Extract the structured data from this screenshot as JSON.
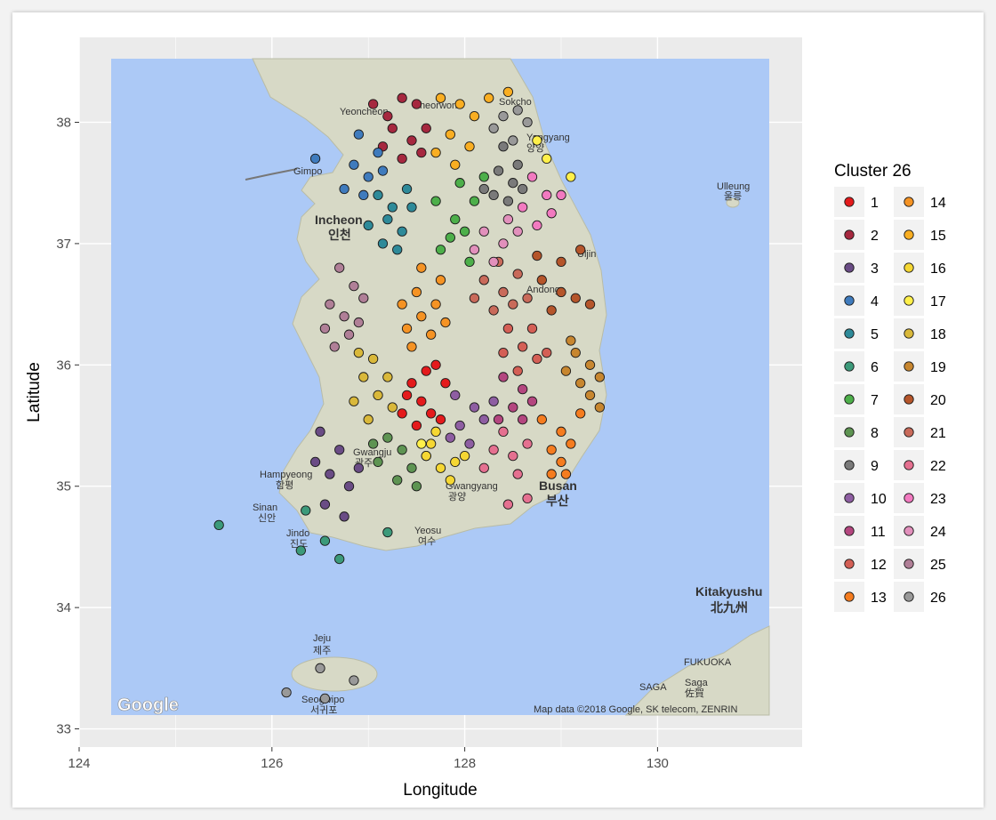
{
  "chart_data": {
    "type": "scatter",
    "xlabel": "Longitude",
    "ylabel": "Latitude",
    "xlim": [
      124,
      131.5
    ],
    "ylim": [
      32.85,
      38.7
    ],
    "xticks": [
      124,
      126,
      128,
      130
    ],
    "yticks": [
      33,
      34,
      35,
      36,
      37,
      38
    ],
    "grid": true,
    "legend": {
      "title": "Cluster 26",
      "placement": "right",
      "columns": 2
    },
    "attribution": "Map data ©2018 Google, SK telecom, ZENRIN",
    "map_labels": [
      "Yeoncheon",
      "Cheorwon",
      "Sokcho",
      "Yangyang",
      "양양",
      "Gimpo",
      "Ulleung",
      "울릉",
      "Incheon",
      "인천",
      "Uljin",
      "Andong",
      "Hampyeong",
      "함평",
      "Sinan",
      "신안",
      "Jindo",
      "진도",
      "Gwangju",
      "광주",
      "Gwangyang",
      "광양",
      "Yeosu",
      "여수",
      "Busan",
      "부산",
      "Kitakyushu",
      "北九州",
      "FUKUOKA",
      "SAGA",
      "Saga",
      "佐賀",
      "Jeju",
      "제주",
      "Seogwipo",
      "서귀포",
      "Google"
    ],
    "series": [
      {
        "name": "1",
        "color": "#E41A1C",
        "points": [
          [
            127.45,
            35.85
          ],
          [
            127.6,
            35.95
          ],
          [
            127.7,
            36.0
          ],
          [
            127.8,
            35.85
          ],
          [
            127.55,
            35.7
          ],
          [
            127.65,
            35.6
          ],
          [
            127.35,
            35.6
          ],
          [
            127.75,
            35.55
          ],
          [
            127.4,
            35.75
          ],
          [
            127.5,
            35.5
          ]
        ]
      },
      {
        "name": "2",
        "color": "#A6283F",
        "points": [
          [
            127.05,
            38.15
          ],
          [
            127.2,
            38.05
          ],
          [
            127.35,
            38.2
          ],
          [
            127.5,
            38.15
          ],
          [
            127.25,
            37.95
          ],
          [
            127.45,
            37.85
          ],
          [
            127.6,
            37.95
          ],
          [
            127.15,
            37.8
          ],
          [
            127.35,
            37.7
          ],
          [
            127.55,
            37.75
          ]
        ]
      },
      {
        "name": "3",
        "color": "#6A4C85",
        "points": [
          [
            126.5,
            35.45
          ],
          [
            126.7,
            35.3
          ],
          [
            126.6,
            35.1
          ],
          [
            126.8,
            35.0
          ],
          [
            126.45,
            35.2
          ],
          [
            126.9,
            35.15
          ],
          [
            126.55,
            34.85
          ],
          [
            126.75,
            34.75
          ]
        ]
      },
      {
        "name": "4",
        "color": "#3F7BBD",
        "points": [
          [
            126.9,
            37.9
          ],
          [
            127.1,
            37.75
          ],
          [
            126.85,
            37.65
          ],
          [
            127.0,
            37.55
          ],
          [
            126.75,
            37.45
          ],
          [
            127.15,
            37.6
          ],
          [
            126.95,
            37.4
          ],
          [
            126.45,
            37.7
          ]
        ]
      },
      {
        "name": "5",
        "color": "#2E8A99",
        "points": [
          [
            127.1,
            37.4
          ],
          [
            127.25,
            37.3
          ],
          [
            127.4,
            37.45
          ],
          [
            127.2,
            37.2
          ],
          [
            127.0,
            37.15
          ],
          [
            127.35,
            37.1
          ],
          [
            127.15,
            37.0
          ],
          [
            127.3,
            36.95
          ],
          [
            127.45,
            37.3
          ]
        ]
      },
      {
        "name": "6",
        "color": "#3C9A7A",
        "points": [
          [
            125.45,
            34.68
          ],
          [
            126.35,
            34.8
          ],
          [
            126.3,
            34.47
          ],
          [
            126.55,
            34.55
          ],
          [
            126.7,
            34.4
          ],
          [
            127.2,
            34.62
          ]
        ]
      },
      {
        "name": "7",
        "color": "#4DAF4A",
        "points": [
          [
            127.7,
            37.35
          ],
          [
            127.9,
            37.2
          ],
          [
            128.1,
            37.35
          ],
          [
            127.85,
            37.05
          ],
          [
            128.0,
            37.1
          ],
          [
            127.75,
            36.95
          ],
          [
            128.05,
            36.85
          ],
          [
            127.95,
            37.5
          ],
          [
            128.2,
            37.55
          ]
        ]
      },
      {
        "name": "8",
        "color": "#5E9452",
        "points": [
          [
            127.2,
            35.4
          ],
          [
            127.35,
            35.3
          ],
          [
            127.1,
            35.2
          ],
          [
            127.45,
            35.15
          ],
          [
            127.3,
            35.05
          ],
          [
            127.5,
            35.0
          ],
          [
            127.05,
            35.35
          ],
          [
            127.6,
            35.25
          ]
        ]
      },
      {
        "name": "9",
        "color": "#7A7A7A",
        "points": [
          [
            128.35,
            37.6
          ],
          [
            128.5,
            37.5
          ],
          [
            128.45,
            37.35
          ],
          [
            128.6,
            37.45
          ],
          [
            128.3,
            37.4
          ],
          [
            128.55,
            37.65
          ],
          [
            128.4,
            37.8
          ],
          [
            128.2,
            37.45
          ]
        ]
      },
      {
        "name": "10",
        "color": "#8E5EA2",
        "points": [
          [
            127.9,
            35.75
          ],
          [
            128.1,
            35.65
          ],
          [
            127.95,
            35.5
          ],
          [
            128.2,
            35.55
          ],
          [
            127.85,
            35.4
          ],
          [
            128.05,
            35.35
          ],
          [
            128.3,
            35.7
          ]
        ]
      },
      {
        "name": "11",
        "color": "#B4467F",
        "points": [
          [
            128.4,
            35.9
          ],
          [
            128.6,
            35.8
          ],
          [
            128.5,
            35.65
          ],
          [
            128.7,
            35.7
          ],
          [
            128.35,
            35.55
          ],
          [
            128.6,
            35.55
          ]
        ]
      },
      {
        "name": "12",
        "color": "#D45F55",
        "points": [
          [
            128.4,
            36.1
          ],
          [
            128.6,
            36.15
          ],
          [
            128.75,
            36.05
          ],
          [
            128.55,
            35.95
          ],
          [
            128.85,
            36.1
          ],
          [
            128.45,
            36.3
          ],
          [
            128.7,
            36.3
          ]
        ]
      },
      {
        "name": "13",
        "color": "#F57C1F",
        "points": [
          [
            128.8,
            35.55
          ],
          [
            129.0,
            35.45
          ],
          [
            128.9,
            35.3
          ],
          [
            129.1,
            35.35
          ],
          [
            129.2,
            35.6
          ],
          [
            129.0,
            35.2
          ],
          [
            128.9,
            35.1
          ],
          [
            129.05,
            35.1
          ]
        ]
      },
      {
        "name": "14",
        "color": "#F59324",
        "points": [
          [
            127.4,
            36.3
          ],
          [
            127.55,
            36.4
          ],
          [
            127.7,
            36.5
          ],
          [
            127.5,
            36.6
          ],
          [
            127.8,
            36.35
          ],
          [
            127.35,
            36.5
          ],
          [
            127.65,
            36.25
          ],
          [
            127.45,
            36.15
          ],
          [
            127.75,
            36.7
          ],
          [
            127.55,
            36.8
          ]
        ]
      },
      {
        "name": "15",
        "color": "#F9AE22",
        "points": [
          [
            127.75,
            38.2
          ],
          [
            127.95,
            38.15
          ],
          [
            128.1,
            38.05
          ],
          [
            127.85,
            37.9
          ],
          [
            128.05,
            37.8
          ],
          [
            127.7,
            37.75
          ],
          [
            127.9,
            37.65
          ],
          [
            128.25,
            38.2
          ],
          [
            128.45,
            38.25
          ]
        ]
      },
      {
        "name": "16",
        "color": "#F5D733",
        "points": [
          [
            127.6,
            35.25
          ],
          [
            127.75,
            35.15
          ],
          [
            127.9,
            35.2
          ],
          [
            127.65,
            35.35
          ],
          [
            127.85,
            35.05
          ],
          [
            128.0,
            35.25
          ],
          [
            127.7,
            35.45
          ]
        ]
      },
      {
        "name": "17",
        "color": "#FFF04A",
        "points": [
          [
            128.75,
            37.85
          ],
          [
            128.85,
            37.7
          ],
          [
            129.1,
            37.55
          ],
          [
            127.55,
            35.35
          ]
        ]
      },
      {
        "name": "18",
        "color": "#D9B83A",
        "points": [
          [
            126.95,
            35.9
          ],
          [
            127.1,
            35.75
          ],
          [
            126.85,
            35.7
          ],
          [
            127.2,
            35.9
          ],
          [
            127.05,
            36.05
          ],
          [
            126.9,
            36.1
          ],
          [
            127.25,
            35.65
          ],
          [
            127.0,
            35.55
          ]
        ]
      },
      {
        "name": "19",
        "color": "#C7862F",
        "points": [
          [
            129.15,
            36.1
          ],
          [
            129.3,
            36.0
          ],
          [
            129.2,
            35.85
          ],
          [
            129.4,
            35.9
          ],
          [
            129.05,
            35.95
          ],
          [
            129.3,
            35.75
          ],
          [
            129.4,
            35.65
          ],
          [
            129.1,
            36.2
          ]
        ]
      },
      {
        "name": "20",
        "color": "#B5552A",
        "points": [
          [
            128.8,
            36.7
          ],
          [
            129.0,
            36.6
          ],
          [
            128.9,
            36.45
          ],
          [
            129.15,
            36.55
          ],
          [
            128.75,
            36.9
          ],
          [
            129.0,
            36.85
          ],
          [
            129.2,
            36.95
          ],
          [
            129.3,
            36.5
          ]
        ]
      },
      {
        "name": "21",
        "color": "#C96A5A",
        "points": [
          [
            128.2,
            36.7
          ],
          [
            128.4,
            36.6
          ],
          [
            128.55,
            36.75
          ],
          [
            128.3,
            36.45
          ],
          [
            128.5,
            36.5
          ],
          [
            128.1,
            36.55
          ],
          [
            128.65,
            36.55
          ],
          [
            128.35,
            36.85
          ]
        ]
      },
      {
        "name": "22",
        "color": "#E57090",
        "points": [
          [
            128.3,
            35.3
          ],
          [
            128.5,
            35.25
          ],
          [
            128.4,
            35.45
          ],
          [
            128.65,
            35.35
          ],
          [
            128.2,
            35.15
          ],
          [
            128.55,
            35.1
          ],
          [
            128.45,
            34.85
          ],
          [
            128.65,
            34.9
          ]
        ]
      },
      {
        "name": "23",
        "color": "#F27AC0",
        "points": [
          [
            128.7,
            37.55
          ],
          [
            128.85,
            37.4
          ],
          [
            128.6,
            37.3
          ],
          [
            128.9,
            37.25
          ],
          [
            129.0,
            37.4
          ],
          [
            128.75,
            37.15
          ]
        ]
      },
      {
        "name": "24",
        "color": "#E290BC",
        "points": [
          [
            128.2,
            37.1
          ],
          [
            128.4,
            37.0
          ],
          [
            128.3,
            36.85
          ],
          [
            128.55,
            37.1
          ],
          [
            128.45,
            37.2
          ],
          [
            128.1,
            36.95
          ]
        ]
      },
      {
        "name": "25",
        "color": "#B07F97",
        "points": [
          [
            126.7,
            36.8
          ],
          [
            126.85,
            36.65
          ],
          [
            126.6,
            36.5
          ],
          [
            126.75,
            36.4
          ],
          [
            126.95,
            36.55
          ],
          [
            126.55,
            36.3
          ],
          [
            126.8,
            36.25
          ],
          [
            126.65,
            36.15
          ],
          [
            126.9,
            36.35
          ]
        ]
      },
      {
        "name": "26",
        "color": "#999999",
        "points": [
          [
            128.4,
            38.05
          ],
          [
            128.55,
            38.1
          ],
          [
            128.3,
            37.95
          ],
          [
            128.5,
            37.85
          ],
          [
            128.65,
            38.0
          ],
          [
            126.5,
            33.5
          ],
          [
            126.55,
            33.25
          ],
          [
            126.85,
            33.4
          ],
          [
            126.15,
            33.3
          ]
        ]
      }
    ]
  }
}
